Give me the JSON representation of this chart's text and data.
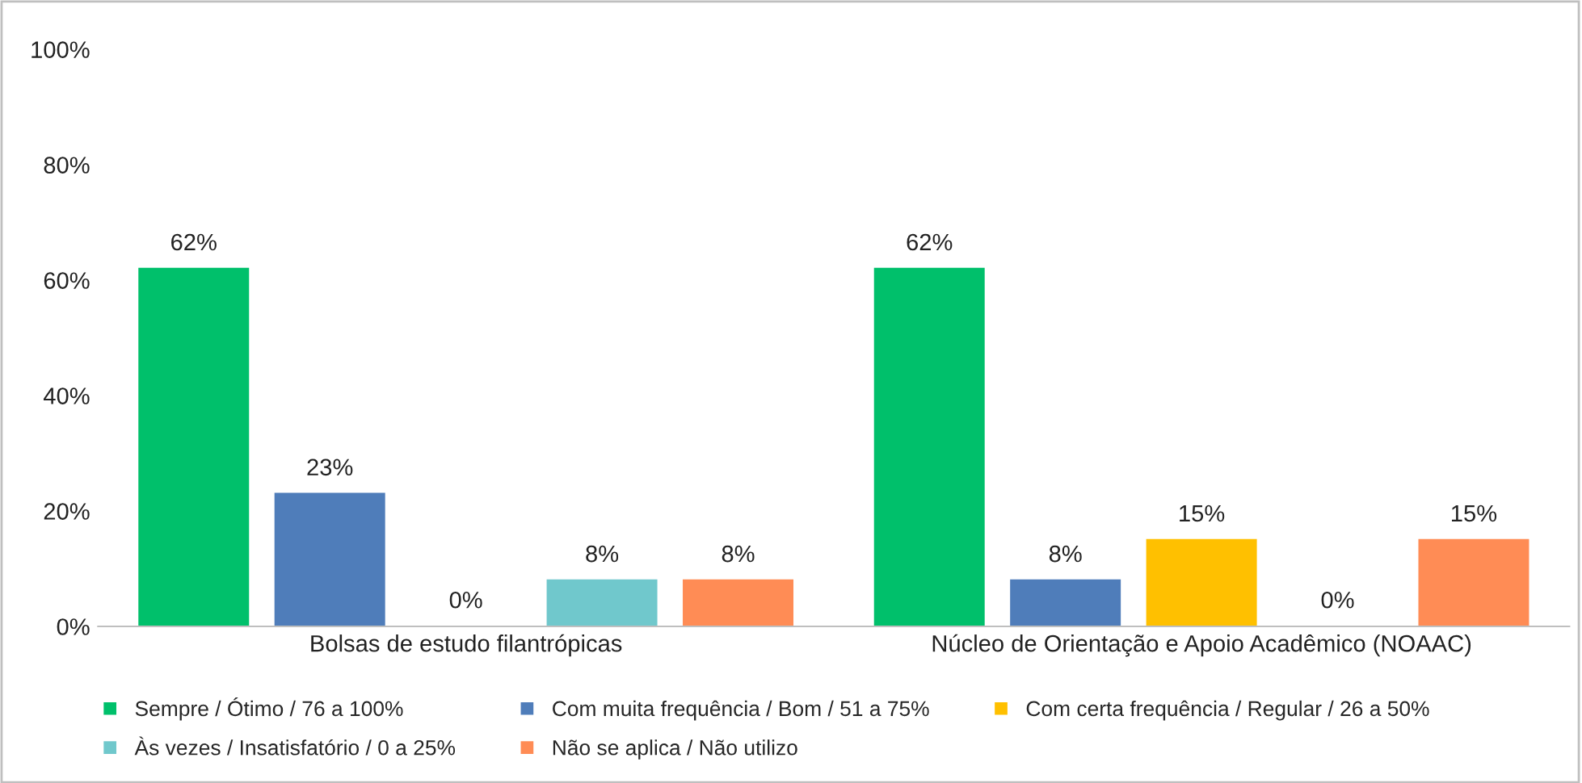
{
  "chart_data": {
    "type": "bar",
    "categories": [
      "Bolsas de estudo filantrópicas",
      "Núcleo de Orientação e Apoio Acadêmico (NOAAC)"
    ],
    "series": [
      {
        "name": "Sempre / Ótimo / 76 a 100%",
        "color": "#00c06b",
        "values": [
          62,
          62
        ],
        "value_labels": [
          "62%",
          "62%"
        ]
      },
      {
        "name": "Com muita frequência / Bom / 51 a 75%",
        "color": "#4f7dba",
        "values": [
          23,
          8
        ],
        "value_labels": [
          "23%",
          "8%"
        ]
      },
      {
        "name": "Com certa frequência / Regular / 26 a 50%",
        "color": "#ffc000",
        "values": [
          0,
          15
        ],
        "value_labels": [
          "0%",
          "15%"
        ]
      },
      {
        "name": "Às vezes / Insatisfatório / 0 a 25%",
        "color": "#70c8cc",
        "values": [
          8,
          0
        ],
        "value_labels": [
          "8%",
          "0%"
        ]
      },
      {
        "name": "Não se aplica / Não utilizo",
        "color": "#ff8c55",
        "values": [
          8,
          15
        ],
        "value_labels": [
          "8%",
          "15%"
        ]
      }
    ],
    "ylim": [
      0,
      100
    ],
    "yticks": [
      {
        "value": 0,
        "label": "0%"
      },
      {
        "value": 20,
        "label": "20%"
      },
      {
        "value": 40,
        "label": "40%"
      },
      {
        "value": 60,
        "label": "60%"
      },
      {
        "value": 80,
        "label": "80%"
      },
      {
        "value": 100,
        "label": "100%"
      }
    ],
    "grid": false,
    "legend": "bottom"
  }
}
